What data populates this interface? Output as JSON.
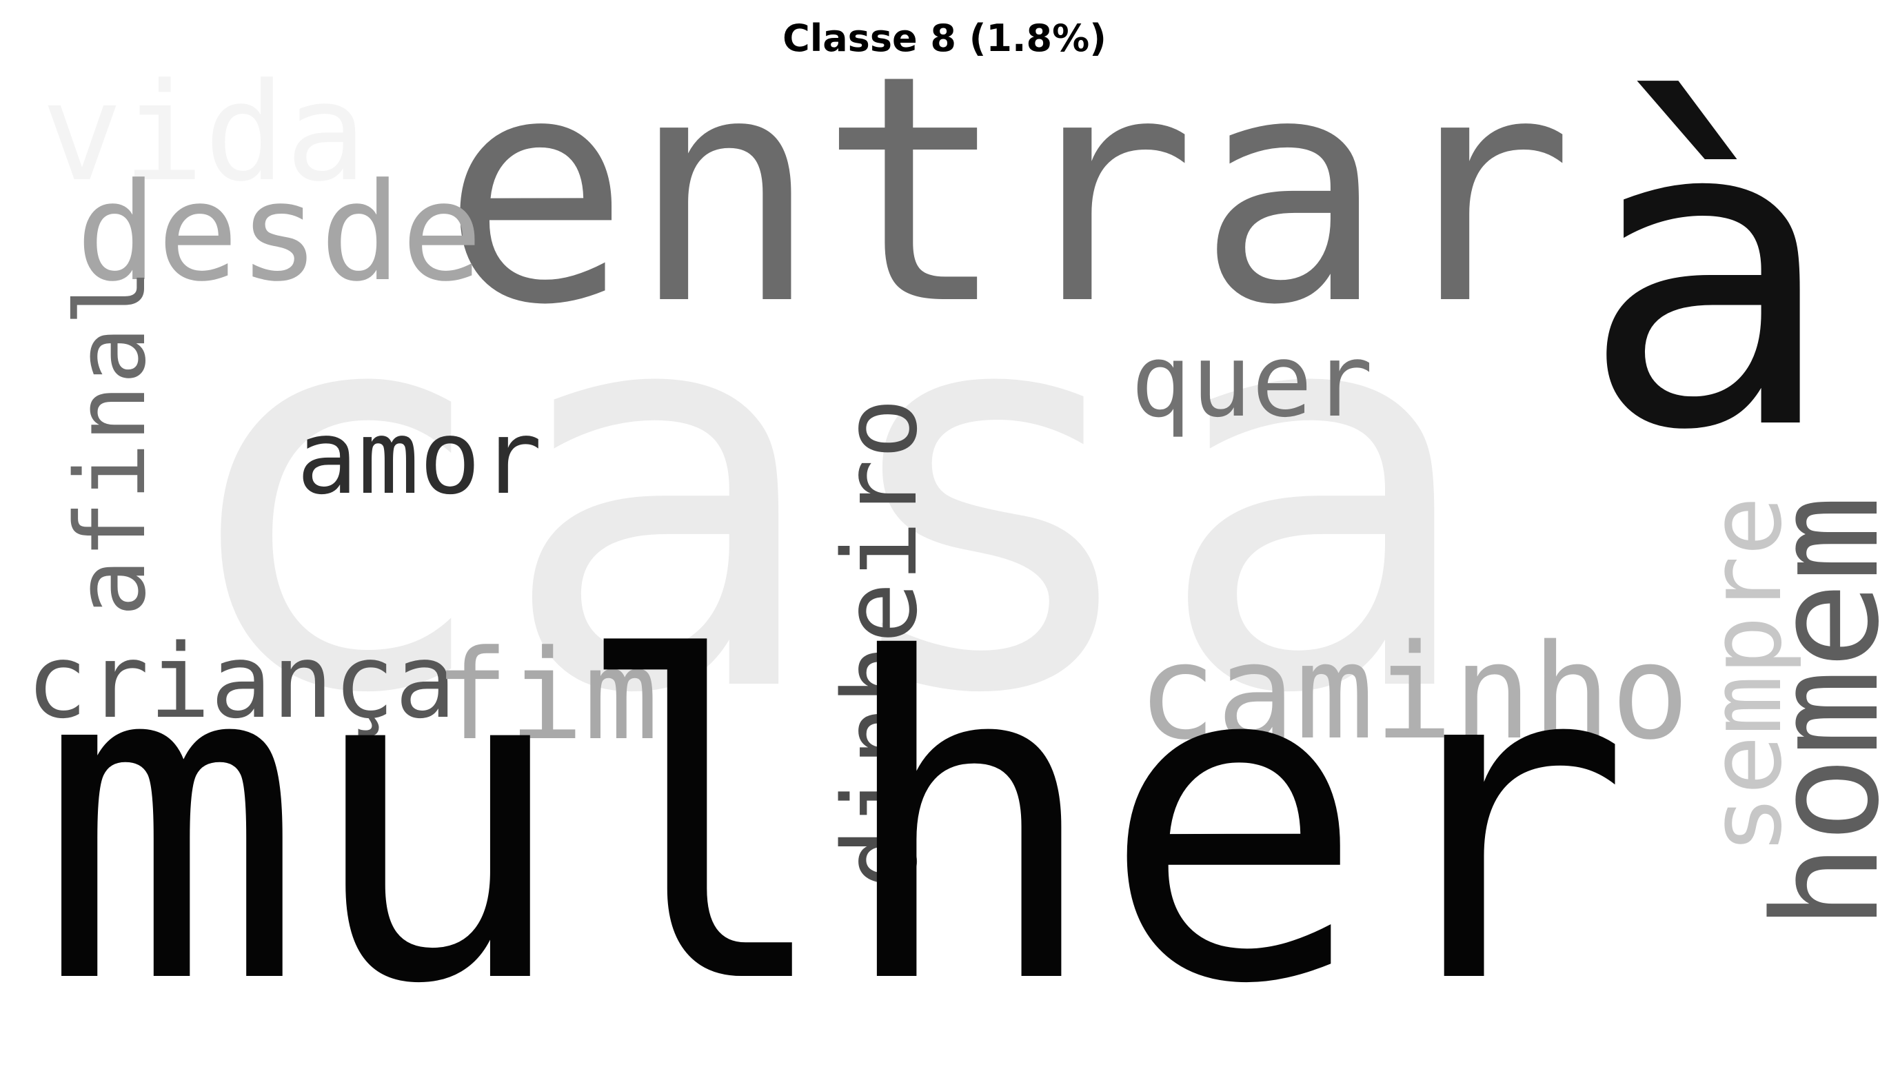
{
  "title": "Classe 8 (1.8%)",
  "words": [
    {
      "id": "casa",
      "text": "casa",
      "color": "#ebebeb"
    },
    {
      "id": "vida",
      "text": "vida",
      "color": "#f4f4f4"
    },
    {
      "id": "entrar",
      "text": "entrar",
      "color": "#6b6b6b"
    },
    {
      "id": "a-grave",
      "text": "à",
      "color": "#111111"
    },
    {
      "id": "desde",
      "text": "desde",
      "color": "#a6a6a6"
    },
    {
      "id": "afinal",
      "text": "afinal",
      "color": "#6a6a6a"
    },
    {
      "id": "quer",
      "text": "quer",
      "color": "#727272"
    },
    {
      "id": "amor",
      "text": "amor",
      "color": "#2e2e2e"
    },
    {
      "id": "dinheiro",
      "text": "dinheiro",
      "color": "#4c4c4c"
    },
    {
      "id": "sempre",
      "text": "sempre",
      "color": "#c7c7c7"
    },
    {
      "id": "homem",
      "text": "homem",
      "color": "#5e5e5e"
    },
    {
      "id": "crianca",
      "text": "criança",
      "color": "#575757"
    },
    {
      "id": "fim",
      "text": "fim",
      "color": "#a9a9a9"
    },
    {
      "id": "caminho",
      "text": "caminho",
      "color": "#b0b0b0"
    },
    {
      "id": "mulher",
      "text": "mulher",
      "color": "#050505"
    }
  ]
}
